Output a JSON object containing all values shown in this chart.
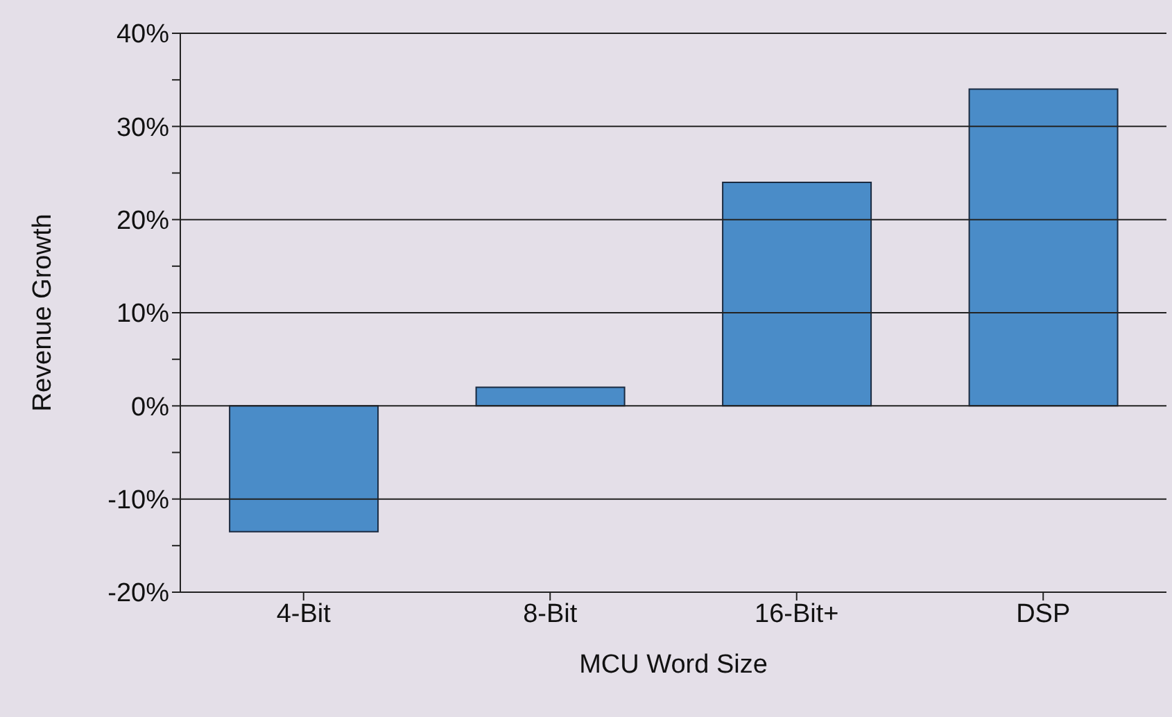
{
  "chart_data": {
    "type": "bar",
    "xlabel": "MCU Word Size",
    "ylabel": "Revenue Growth",
    "categories": [
      "4-Bit",
      "8-Bit",
      "16-Bit+",
      "DSP"
    ],
    "values": [
      -13.5,
      2,
      24,
      34
    ],
    "color": "#4a8cc8",
    "ylim": [
      -20,
      40
    ],
    "yticks": [
      {
        "value": -20,
        "label": "-20%"
      },
      {
        "value": -15,
        "label": null
      },
      {
        "value": -10,
        "label": "-10%"
      },
      {
        "value": -5,
        "label": null
      },
      {
        "value": 0,
        "label": "0%"
      },
      {
        "value": 5,
        "label": null
      },
      {
        "value": 10,
        "label": "10%"
      },
      {
        "value": 15,
        "label": null
      },
      {
        "value": 20,
        "label": "20%"
      },
      {
        "value": 25,
        "label": null
      },
      {
        "value": 30,
        "label": "30%"
      },
      {
        "value": 35,
        "label": null
      },
      {
        "value": 40,
        "label": "40%"
      }
    ],
    "grid": "y"
  }
}
